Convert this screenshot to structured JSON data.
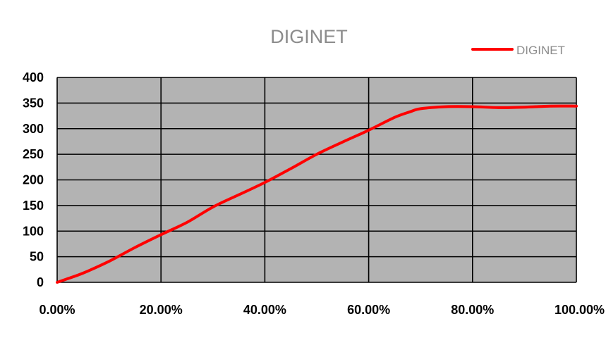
{
  "chart_data": {
    "type": "line",
    "title": "DIGINET",
    "xlabel": "",
    "ylabel": "",
    "x_tick_labels": [
      "0.00%",
      "20.00%",
      "40.00%",
      "60.00%",
      "80.00%",
      "100.00%"
    ],
    "y_tick_labels": [
      "0",
      "50",
      "100",
      "150",
      "200",
      "250",
      "300",
      "350",
      "400"
    ],
    "xlim": [
      0,
      100
    ],
    "ylim": [
      0,
      400
    ],
    "x_ticks": [
      0,
      20,
      40,
      60,
      80,
      100
    ],
    "y_ticks": [
      0,
      50,
      100,
      150,
      200,
      250,
      300,
      350,
      400
    ],
    "grid": true,
    "plot_background": "#b3b3b3",
    "legend_position": "top-right",
    "series": [
      {
        "name": "DIGINET",
        "color": "#ff0000",
        "x": [
          0,
          2,
          5,
          10,
          15,
          20,
          25,
          30,
          35,
          40,
          45,
          50,
          55,
          60,
          65,
          68,
          70,
          75,
          80,
          85,
          90,
          95,
          100
        ],
        "y": [
          0,
          7,
          18,
          41,
          68,
          93,
          117,
          147,
          171,
          195,
          222,
          250,
          274,
          297,
          322,
          333,
          339,
          343,
          343,
          341,
          342,
          344,
          344
        ]
      }
    ]
  }
}
